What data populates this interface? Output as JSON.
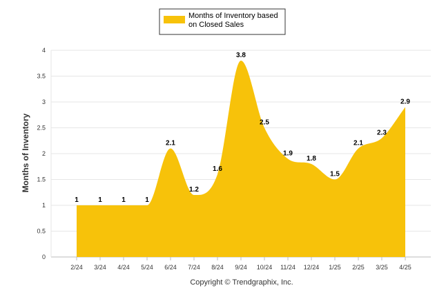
{
  "chart_data": {
    "type": "area",
    "categories": [
      "2/24",
      "3/24",
      "4/24",
      "5/24",
      "6/24",
      "7/24",
      "8/24",
      "9/24",
      "10/24",
      "11/24",
      "12/24",
      "1/25",
      "2/25",
      "3/25",
      "4/25"
    ],
    "series": [
      {
        "name": "Months of Inventory based on Closed Sales",
        "values": [
          1,
          1,
          1,
          1,
          2.1,
          1.2,
          1.6,
          3.8,
          2.5,
          1.9,
          1.8,
          1.5,
          2.1,
          2.3,
          2.9
        ],
        "data_labels": [
          "1",
          "1",
          "1",
          "1",
          "2.1",
          "1.2",
          "1.6",
          "3.8",
          "2.5",
          "1.9",
          "1.8",
          "1.5",
          "2.1",
          "2.3",
          "2.9"
        ]
      }
    ],
    "legend_lines": [
      "Months of Inventory based",
      "on Closed Sales"
    ],
    "ylabel": "Months of Inventory",
    "xlabel": "",
    "ylim": [
      0,
      4
    ],
    "yticks": [
      "0",
      "0.5",
      "1",
      "1.5",
      "2",
      "2.5",
      "3",
      "3.5",
      "4"
    ],
    "grid": true,
    "legend_position": "top-center",
    "series_color": "#F7C20A",
    "footer": "Copyright © Trendgraphix, Inc."
  }
}
